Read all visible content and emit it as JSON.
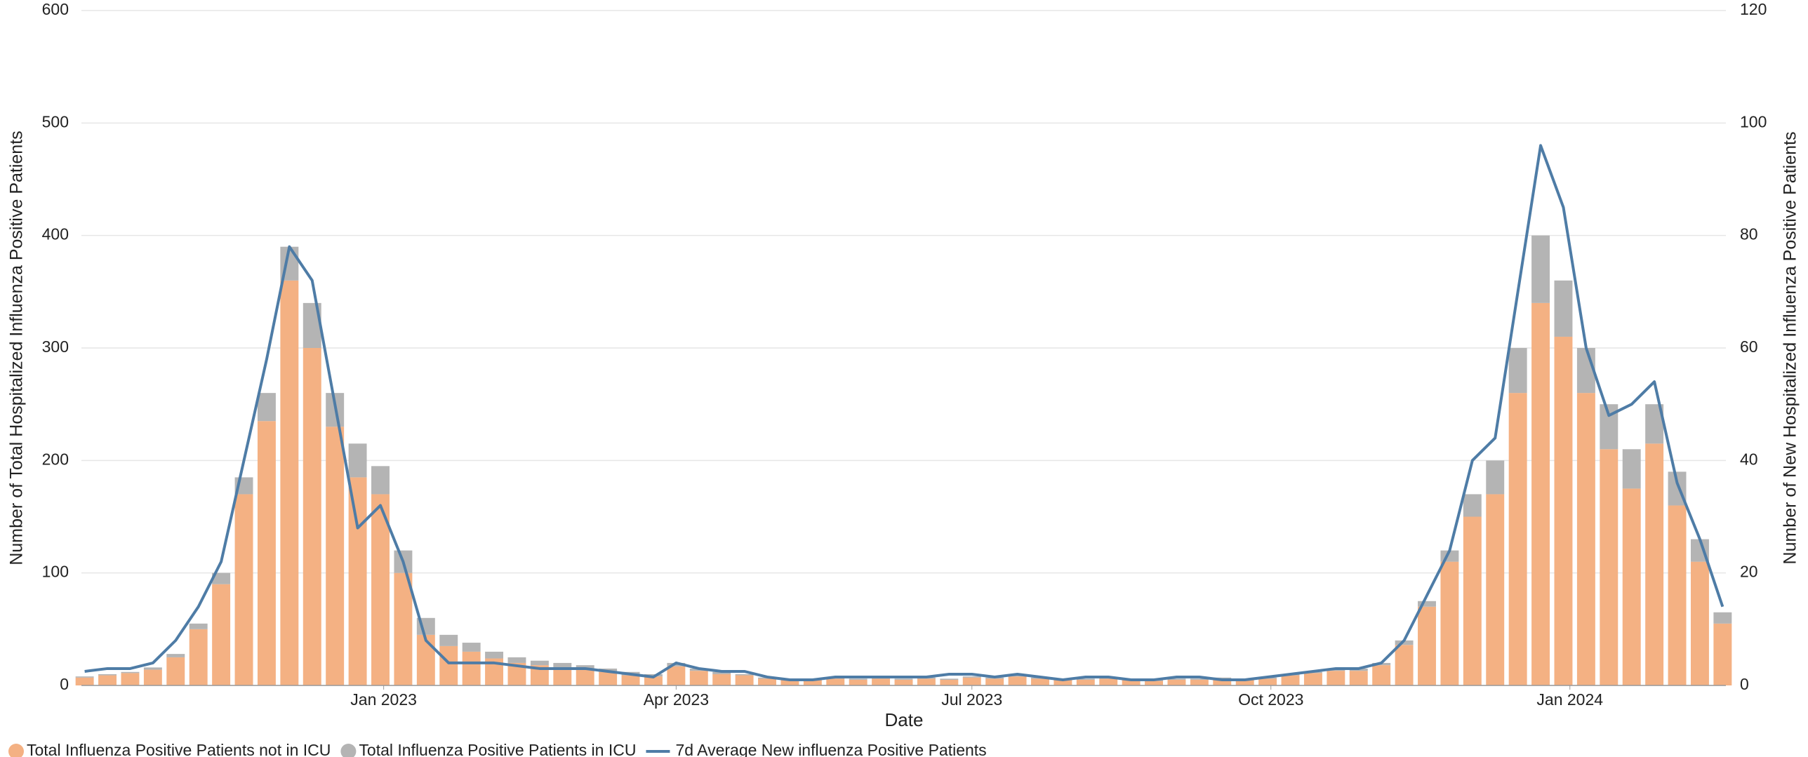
{
  "chart_data": {
    "type": "bar-line",
    "x_label": "Date",
    "y_label": "Number of Total Hospitalized Influenza Positive Patients",
    "y2_label": "Number of New Hospitalized Influenza Positive Patients",
    "x": [
      "2022-10-01",
      "2022-10-08",
      "2022-10-15",
      "2022-10-22",
      "2022-10-29",
      "2022-11-05",
      "2022-11-12",
      "2022-11-19",
      "2022-11-26",
      "2022-12-03",
      "2022-12-10",
      "2022-12-17",
      "2022-12-24",
      "2022-12-31",
      "2023-01-07",
      "2023-01-14",
      "2023-01-21",
      "2023-01-28",
      "2023-02-04",
      "2023-02-11",
      "2023-02-18",
      "2023-02-25",
      "2023-03-04",
      "2023-03-11",
      "2023-03-18",
      "2023-03-25",
      "2023-04-01",
      "2023-04-08",
      "2023-04-15",
      "2023-04-22",
      "2023-04-29",
      "2023-05-06",
      "2023-05-13",
      "2023-05-20",
      "2023-05-27",
      "2023-06-03",
      "2023-06-10",
      "2023-06-17",
      "2023-06-24",
      "2023-07-01",
      "2023-07-08",
      "2023-07-15",
      "2023-07-22",
      "2023-07-29",
      "2023-08-05",
      "2023-08-12",
      "2023-08-19",
      "2023-08-26",
      "2023-09-02",
      "2023-09-09",
      "2023-09-16",
      "2023-09-23",
      "2023-09-30",
      "2023-10-07",
      "2023-10-14",
      "2023-10-21",
      "2023-10-28",
      "2023-11-04",
      "2023-11-11",
      "2023-11-18",
      "2023-11-25",
      "2023-12-02",
      "2023-12-09",
      "2023-12-16",
      "2023-12-23",
      "2023-12-30",
      "2024-01-06",
      "2024-01-13",
      "2024-01-20",
      "2024-01-27",
      "2024-02-03",
      "2024-02-10",
      "2024-02-17"
    ],
    "xlim": [
      "2022-09-30",
      "2024-02-18"
    ],
    "xticks": [
      {
        "value": "2023-01-01",
        "label": "Jan 2023"
      },
      {
        "value": "2023-04-01",
        "label": "Apr 2023"
      },
      {
        "value": "2023-07-01",
        "label": "Jul 2023"
      },
      {
        "value": "2023-10-01",
        "label": "Oct 2023"
      },
      {
        "value": "2024-01-01",
        "label": "Jan 2024"
      }
    ],
    "ylim": [
      0,
      600
    ],
    "yticks": [
      0,
      100,
      200,
      300,
      400,
      500,
      600
    ],
    "y2lim": [
      0,
      120
    ],
    "y2ticks": [
      0,
      20,
      40,
      60,
      80,
      100,
      120
    ],
    "grid": true,
    "series": [
      {
        "name": "Total Influenza Positive Patients not in ICU",
        "color": "#f4b183",
        "kind": "bar",
        "values": [
          7,
          9,
          11,
          14,
          25,
          50,
          90,
          170,
          235,
          360,
          300,
          230,
          185,
          170,
          100,
          45,
          35,
          30,
          24,
          20,
          18,
          16,
          15,
          12,
          9,
          8,
          17,
          13,
          10,
          9,
          6,
          5,
          5,
          6,
          5,
          6,
          5,
          6,
          5,
          7,
          6,
          8,
          6,
          5,
          5,
          6,
          5,
          4,
          5,
          5,
          6,
          5,
          6,
          9,
          11,
          13,
          13,
          18,
          36,
          70,
          110,
          150,
          170,
          260,
          340,
          310,
          260,
          210,
          175,
          215,
          160,
          110,
          55
        ]
      },
      {
        "name": "Total Influenza Positive Patients in ICU",
        "color": "#b4b4b4",
        "kind": "bar",
        "values": [
          1,
          1,
          1,
          2,
          3,
          5,
          10,
          15,
          25,
          30,
          40,
          30,
          30,
          25,
          20,
          15,
          10,
          8,
          6,
          5,
          4,
          4,
          3,
          3,
          3,
          2,
          3,
          2,
          2,
          1,
          1,
          1,
          1,
          1,
          1,
          1,
          1,
          1,
          1,
          1,
          1,
          1,
          1,
          1,
          1,
          1,
          1,
          1,
          1,
          1,
          1,
          1,
          1,
          1,
          1,
          1,
          2,
          2,
          4,
          5,
          10,
          20,
          30,
          40,
          60,
          50,
          40,
          40,
          35,
          35,
          30,
          20,
          10
        ]
      },
      {
        "name": "7d Average New influenza Positive Patients",
        "color": "#4e7ca6",
        "kind": "line",
        "axis": "y2",
        "values": [
          2.5,
          3,
          3,
          4,
          8,
          14,
          22,
          40,
          58,
          78,
          72,
          50,
          28,
          32,
          22,
          8,
          4,
          4,
          4,
          3.5,
          3,
          3,
          3,
          2.5,
          2,
          1.5,
          4,
          3,
          2.5,
          2.5,
          1.5,
          1,
          1,
          1.5,
          1.5,
          1.5,
          1.5,
          1.5,
          2,
          2,
          1.5,
          2,
          1.5,
          1,
          1.5,
          1.5,
          1,
          1,
          1.5,
          1.5,
          1,
          1,
          1.5,
          2,
          2.5,
          3,
          3,
          4,
          8,
          16,
          24,
          40,
          44,
          70,
          96,
          85,
          60,
          48,
          50,
          54,
          36,
          26,
          14
        ]
      }
    ]
  }
}
